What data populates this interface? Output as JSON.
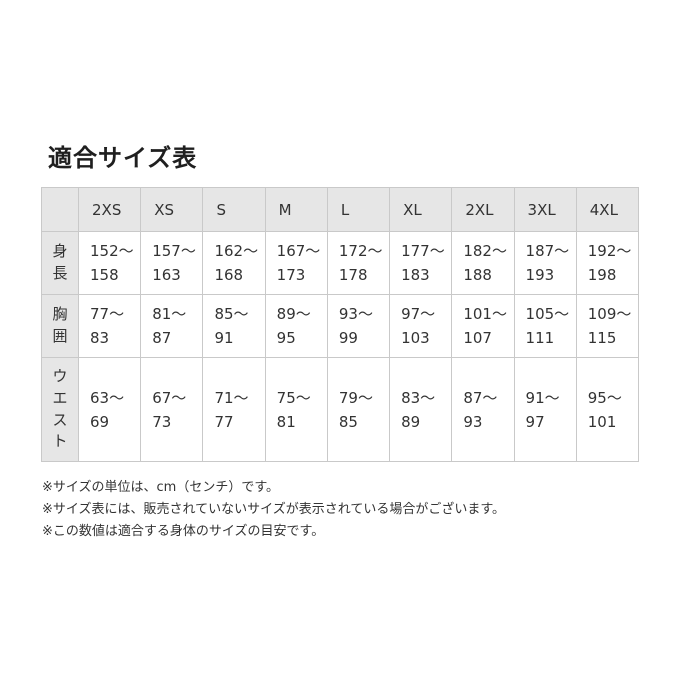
{
  "page_title": "適合サイズ表",
  "chart_data": {
    "type": "table",
    "title": "適合サイズ表",
    "columns": [
      "2XS",
      "XS",
      "S",
      "M",
      "L",
      "XL",
      "2XL",
      "3XL",
      "4XL"
    ],
    "rows": [
      {
        "label": "身長",
        "values": [
          "152～158",
          "157～163",
          "162～168",
          "167～173",
          "172～178",
          "177～183",
          "182～188",
          "187～193",
          "192～198"
        ]
      },
      {
        "label": "胸囲",
        "values": [
          "77～83",
          "81～87",
          "85～91",
          "89～95",
          "93～99",
          "97～103",
          "101～107",
          "105～111",
          "109～115"
        ]
      },
      {
        "label": "ウエスト",
        "values": [
          "63～69",
          "67～73",
          "71～77",
          "75～81",
          "79～85",
          "83～89",
          "87～93",
          "91～97",
          "95～101"
        ]
      }
    ],
    "notes": [
      "※サイズの単位は、cm（センチ）です。",
      "※サイズ表には、販売されていないサイズが表示されている場合がございます。",
      "※この数値は適合する身体のサイズの目安です。"
    ],
    "layout": {
      "header_bg": "#e6e6e6",
      "border_color": "#c9c9c9",
      "text_color": "#333333"
    }
  }
}
